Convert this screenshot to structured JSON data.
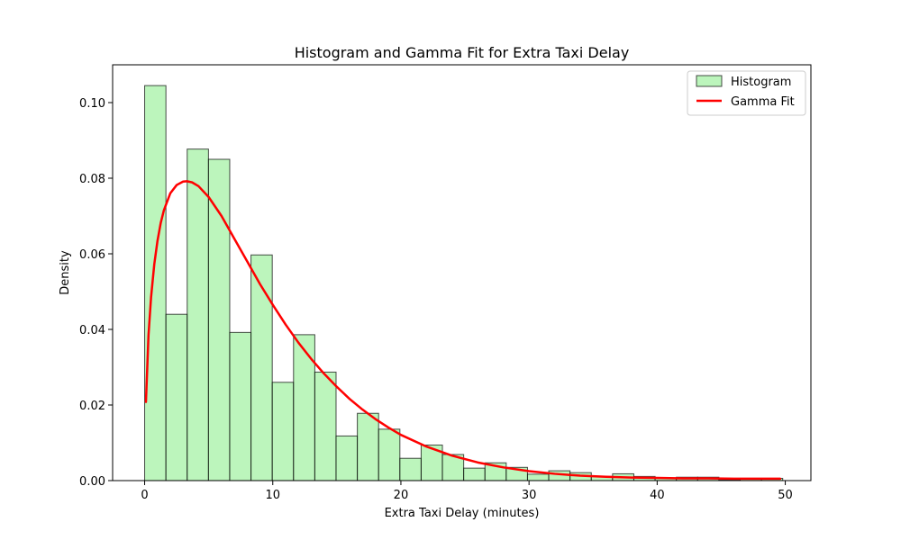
{
  "chart_data": {
    "type": "bar",
    "title": "Histogram and Gamma Fit for Extra Taxi Delay",
    "xlabel": "Extra Taxi Delay (minutes)",
    "ylabel": "Density",
    "xlim": [
      -2.5,
      52.0
    ],
    "ylim": [
      0,
      0.11
    ],
    "xticks": [
      0,
      10,
      20,
      30,
      40,
      50
    ],
    "yticks": [
      0.0,
      0.02,
      0.04,
      0.06,
      0.08,
      0.1
    ],
    "xtick_labels": [
      "0",
      "10",
      "20",
      "30",
      "40",
      "50"
    ],
    "ytick_labels": [
      "0.00",
      "0.02",
      "0.04",
      "0.06",
      "0.08",
      "0.10"
    ],
    "grid": false,
    "legend_placement": "top-right",
    "histogram": {
      "name": "Histogram",
      "color": "#90EE90",
      "edge_color": "#000000",
      "bin_edges": [
        0.0,
        1.66,
        3.32,
        4.98,
        6.64,
        8.3,
        9.96,
        11.62,
        13.28,
        14.94,
        16.6,
        18.26,
        19.92,
        21.58,
        23.24,
        24.9,
        26.56,
        28.22,
        29.88,
        31.54,
        33.2,
        34.86,
        36.52,
        38.18,
        39.84,
        41.5,
        43.16,
        44.82,
        46.48,
        48.14,
        49.8
      ],
      "densities": [
        0.1045,
        0.044,
        0.0877,
        0.085,
        0.0392,
        0.0597,
        0.026,
        0.0386,
        0.0287,
        0.0118,
        0.0178,
        0.0136,
        0.0059,
        0.0094,
        0.0069,
        0.0033,
        0.0047,
        0.0035,
        0.0017,
        0.0026,
        0.0021,
        0.0011,
        0.0018,
        0.0011,
        0.0006,
        0.0009,
        0.0009,
        0.0002,
        0.0006,
        0.0006
      ]
    },
    "series": [
      {
        "name": "Gamma Fit",
        "color": "#FF0000",
        "x": [
          0.1,
          0.3,
          0.5,
          0.75,
          1.0,
          1.25,
          1.5,
          2.0,
          2.5,
          3.0,
          3.3,
          3.7,
          4.2,
          5.0,
          6.0,
          7.0,
          8.0,
          9.0,
          10.0,
          11.0,
          12.0,
          13.0,
          14.0,
          15.0,
          16.0,
          17.0,
          18.0,
          19.0,
          20.0,
          22.0,
          24.0,
          26.0,
          28.0,
          30.0,
          32.0,
          34.0,
          36.0,
          38.0,
          40.0,
          42.0,
          44.0,
          46.0,
          48.0,
          49.6
        ],
        "y": [
          0.0208,
          0.0385,
          0.0485,
          0.0572,
          0.0634,
          0.0681,
          0.0715,
          0.076,
          0.0782,
          0.0791,
          0.0792,
          0.0789,
          0.0779,
          0.075,
          0.07,
          0.064,
          0.058,
          0.052,
          0.0465,
          0.0413,
          0.0365,
          0.0322,
          0.0283,
          0.0248,
          0.0216,
          0.0188,
          0.0163,
          0.0141,
          0.0121,
          0.009,
          0.0066,
          0.0048,
          0.0035,
          0.0025,
          0.0018,
          0.0013,
          0.001,
          0.0008,
          0.0007,
          0.0006,
          0.0006,
          0.0005,
          0.0005,
          0.0005
        ]
      }
    ]
  }
}
